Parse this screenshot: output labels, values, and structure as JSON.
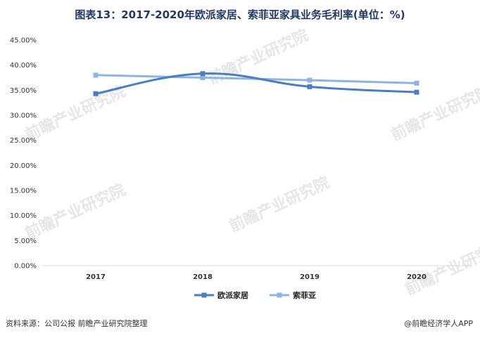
{
  "title": "图表13：2017-2020年欧派家居、索菲亚家具业务毛利率(单位：%)",
  "source": "资料来源：公司公报 前瞻产业研究院整理",
  "brand": "@前瞻经济学人APP",
  "watermark": "前瞻产业研究院",
  "chart_data": {
    "type": "line",
    "categories": [
      "2017",
      "2018",
      "2019",
      "2020"
    ],
    "series": [
      {
        "name": "欧派家居",
        "values": [
          34.3,
          38.3,
          35.7,
          34.6
        ],
        "color": "#4a7ebf"
      },
      {
        "name": "索菲亚",
        "values": [
          38.0,
          37.5,
          37.0,
          36.4
        ],
        "color": "#8fb4e3"
      }
    ],
    "ylim": [
      0,
      45
    ],
    "yticks": [
      "0.00%",
      "5.00%",
      "10.00%",
      "15.00%",
      "20.00%",
      "25.00%",
      "30.00%",
      "35.00%",
      "40.00%",
      "45.00%"
    ],
    "grid": false,
    "legend": "bottom-center"
  }
}
